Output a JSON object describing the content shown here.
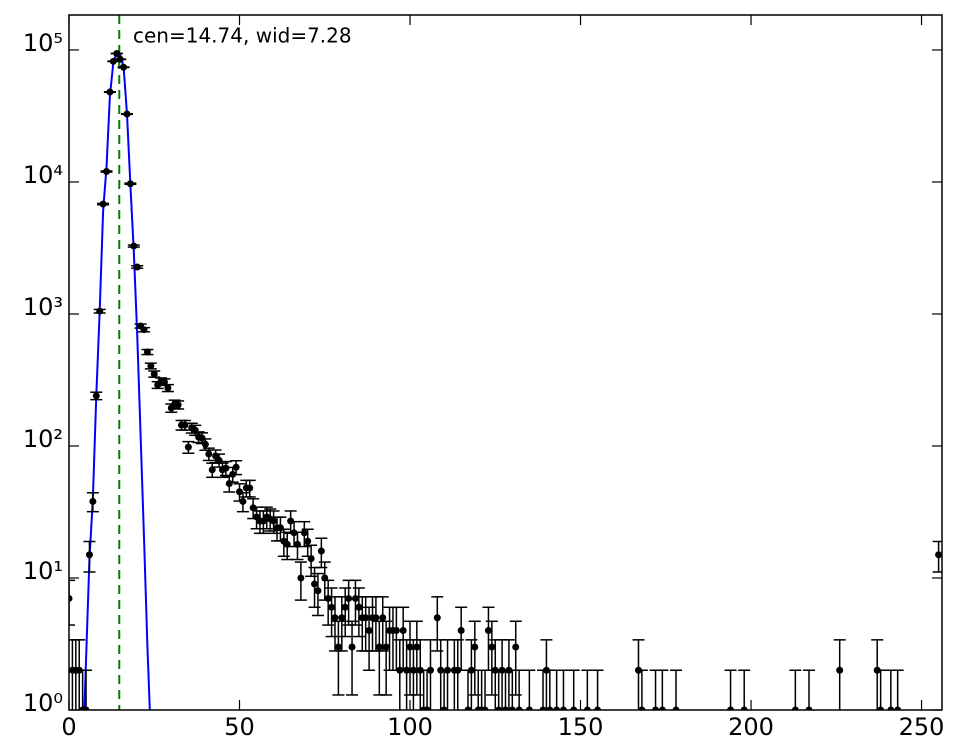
{
  "chart_data": {
    "type": "errorbar",
    "annotation": "cen=14.74, wid=7.28",
    "annotation_color": "#008000",
    "log_y": true,
    "xlim": [
      0,
      256
    ],
    "ylim": [
      1,
      184000
    ],
    "xticks": [
      0,
      50,
      100,
      150,
      200,
      250
    ],
    "yticks": [
      {
        "value": 1,
        "label": "10⁰"
      },
      {
        "value": 10,
        "label": "10¹"
      },
      {
        "value": 100,
        "label": "10²"
      },
      {
        "value": 1000,
        "label": "10³"
      },
      {
        "value": 10000,
        "label": "10⁴"
      },
      {
        "value": 100000,
        "label": "10⁵"
      }
    ],
    "series": [
      {
        "color": "#000000",
        "x": [
          0,
          1,
          2,
          3,
          4,
          5,
          6,
          7,
          8,
          9,
          10,
          11,
          12,
          13,
          14,
          15,
          16,
          17,
          18,
          19,
          20,
          21,
          22,
          23,
          24,
          25,
          26,
          27,
          28,
          29,
          30,
          31,
          32,
          33,
          34,
          35,
          36,
          37,
          38,
          39,
          40,
          41,
          42,
          43,
          44,
          45,
          46,
          47,
          48,
          49,
          50,
          51,
          52,
          53,
          54,
          55,
          56,
          57,
          58,
          59,
          60,
          61,
          62,
          63,
          64,
          65,
          66,
          67,
          68,
          69,
          70,
          71,
          72,
          73,
          74,
          75,
          76,
          77,
          78,
          79,
          80,
          81,
          82,
          83,
          84,
          85,
          86,
          87,
          88,
          89,
          90,
          91,
          92,
          93,
          94,
          95,
          96,
          97,
          98,
          99,
          100,
          101,
          102,
          103,
          104,
          105,
          106,
          108,
          109,
          110,
          111,
          113,
          114,
          115,
          117,
          118,
          119,
          120,
          121,
          122,
          123,
          124,
          125,
          126,
          127,
          128,
          129,
          130,
          131,
          132,
          135,
          139,
          140,
          141,
          143,
          145,
          148,
          152,
          155,
          167,
          168,
          172,
          174,
          178,
          194,
          198,
          213,
          217,
          226,
          237,
          238,
          241,
          243,
          255
        ],
        "values": [
          7,
          2,
          2,
          2,
          1,
          1,
          15,
          38,
          240,
          1050,
          6800,
          12000,
          48000,
          82000,
          94000,
          85000,
          74000,
          32700,
          9700,
          3270,
          2270,
          810,
          760,
          515,
          404,
          351,
          290,
          310,
          305,
          275,
          194,
          208,
          205,
          144,
          144,
          98,
          137,
          132,
          117,
          115,
          103,
          87,
          66,
          84,
          78,
          66,
          68,
          52,
          61,
          69,
          45,
          38,
          48,
          48,
          34,
          29,
          27,
          27,
          29,
          28,
          27,
          24,
          24,
          19,
          18,
          27,
          22,
          18,
          10,
          22,
          19,
          14,
          9,
          8,
          16,
          10,
          7,
          6,
          5,
          3,
          5,
          6,
          7,
          3,
          7,
          6,
          5,
          5,
          4,
          5,
          5,
          3,
          5,
          3,
          4,
          4,
          4,
          2,
          4,
          2,
          3,
          2,
          3,
          2,
          1,
          1,
          2,
          5,
          2,
          1,
          2,
          2,
          2,
          4,
          1,
          2,
          3,
          1,
          1,
          1,
          4,
          3,
          2,
          1,
          2,
          1,
          2,
          1,
          3,
          1,
          1,
          1,
          2,
          1,
          1,
          1,
          1,
          1,
          1,
          2,
          1,
          1,
          1,
          1,
          1,
          1,
          1,
          1,
          2,
          2,
          1,
          1,
          1,
          15
        ],
        "errors": [
          2.6,
          1.4,
          1.4,
          1.4,
          1,
          1,
          3.9,
          6.2,
          15.5,
          32.4,
          82.5,
          109.5,
          219.1,
          286.4,
          306.6,
          291.5,
          272,
          180.8,
          98.5,
          57.2,
          47.6,
          28.5,
          27.6,
          22.7,
          20.1,
          18.7,
          17,
          17.6,
          17.5,
          16.6,
          13.9,
          14.4,
          14.3,
          12,
          12,
          9.9,
          11.7,
          11.5,
          10.8,
          10.7,
          10.1,
          9.3,
          8.1,
          9.2,
          8.8,
          8.1,
          8.2,
          7.2,
          7.8,
          8.3,
          6.7,
          6.2,
          6.9,
          6.9,
          5.8,
          5.4,
          5.2,
          5.2,
          5.4,
          5.3,
          5.2,
          4.9,
          4.9,
          4.4,
          4.2,
          5.2,
          4.7,
          4.2,
          3.2,
          4.7,
          4.4,
          3.7,
          3,
          2.8,
          4,
          3.2,
          2.6,
          2.4,
          2.2,
          1.7,
          2.2,
          2.4,
          2.6,
          1.7,
          2.6,
          2.4,
          2.2,
          2.2,
          2,
          2.2,
          2.2,
          1.7,
          2.2,
          1.7,
          2,
          2,
          2,
          1.4,
          2,
          1.4,
          1.7,
          1.4,
          1.7,
          1.4,
          1,
          1,
          1.4,
          2.2,
          1.4,
          1,
          1.4,
          1.4,
          1.4,
          2,
          1,
          1.4,
          1.7,
          1,
          1,
          1,
          2,
          1.7,
          1.4,
          1,
          1.4,
          1,
          1.4,
          1,
          1.7,
          1,
          1,
          1,
          1.4,
          1,
          1,
          1,
          1,
          1,
          1,
          1.4,
          1,
          1,
          1,
          1,
          1,
          1,
          1,
          1,
          1.4,
          1.4,
          1,
          1,
          1,
          3.9
        ]
      }
    ],
    "fit": {
      "color": "#0000ff",
      "x": [
        4.5,
        6,
        7,
        8,
        9,
        10,
        11,
        12,
        13,
        14,
        15,
        16,
        17,
        18,
        19,
        20,
        21,
        22,
        23,
        23.7
      ],
      "values": [
        1,
        14,
        40,
        240,
        1050,
        6000,
        13000,
        45000,
        80000,
        95000,
        92000,
        75000,
        33000,
        9500,
        3000,
        700,
        120,
        20,
        3,
        1
      ]
    },
    "vline": {
      "x": 14.74,
      "color": "#008000",
      "style": "dashed"
    }
  }
}
